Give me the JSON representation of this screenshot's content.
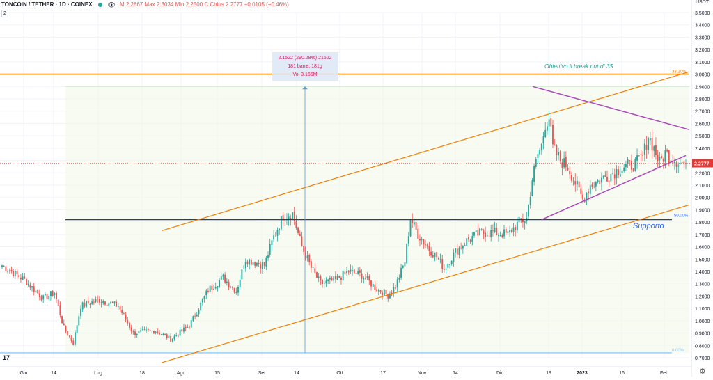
{
  "header": {
    "title": "TONCOIN / TETHER · 1D · COINEX",
    "ohlc_text": "M 2.2867  Max 2.3034  Min 2.2500  C Chius 2.2777  −0.0105 (−0.46%)",
    "badge": "2"
  },
  "currency_label": "USDT",
  "colors": {
    "up": "#26a69a",
    "down": "#ef5350",
    "channel": "#f57c00",
    "triangle": "#ab47bc",
    "support": "#1e3f8f",
    "resistance": "#f57c00",
    "last_price": "#e53935"
  },
  "chart_data": {
    "type": "candlestick",
    "ylim": [
      0.7,
      3.5
    ],
    "y_ticks": [
      "0.7000",
      "0.8000",
      "0.9000",
      "1.0000",
      "1.1000",
      "1.2000",
      "1.3000",
      "1.4000",
      "1.5000",
      "1.6000",
      "1.7000",
      "1.8000",
      "1.9000",
      "2.0000",
      "2.1000",
      "2.2000",
      "2.3000",
      "2.4000",
      "2.5000",
      "2.6000",
      "2.7000",
      "2.8000",
      "2.9000",
      "3.0000",
      "3.1000",
      "3.2000",
      "3.3000",
      "3.4000",
      "3.5000"
    ],
    "x_ticks": [
      "Giu",
      "14",
      "Lug",
      "18",
      "Ago",
      "15",
      "Set",
      "14",
      "Ott",
      "17",
      "Nov",
      "14",
      "Dic",
      "19",
      "2023",
      "16",
      "Feb"
    ],
    "last_price": 2.2777,
    "last_price_label": "2.2777",
    "anchors": [
      [
        0,
        1.45
      ],
      [
        12,
        1.33
      ],
      [
        22,
        1.18
      ],
      [
        28,
        1.23
      ],
      [
        33,
        0.94
      ],
      [
        38,
        0.82
      ],
      [
        42,
        1.12
      ],
      [
        52,
        1.17
      ],
      [
        62,
        1.12
      ],
      [
        70,
        0.9
      ],
      [
        82,
        0.92
      ],
      [
        90,
        0.85
      ],
      [
        100,
        0.96
      ],
      [
        110,
        1.25
      ],
      [
        118,
        1.35
      ],
      [
        125,
        1.24
      ],
      [
        130,
        1.5
      ],
      [
        140,
        1.45
      ],
      [
        145,
        1.68
      ],
      [
        150,
        1.85
      ],
      [
        155,
        1.87
      ],
      [
        160,
        1.6
      ],
      [
        165,
        1.43
      ],
      [
        170,
        1.3
      ],
      [
        178,
        1.33
      ],
      [
        185,
        1.4
      ],
      [
        192,
        1.37
      ],
      [
        200,
        1.26
      ],
      [
        206,
        1.21
      ],
      [
        210,
        1.28
      ],
      [
        215,
        1.48
      ],
      [
        218,
        1.83
      ],
      [
        222,
        1.7
      ],
      [
        228,
        1.58
      ],
      [
        232,
        1.52
      ],
      [
        236,
        1.42
      ],
      [
        242,
        1.56
      ],
      [
        248,
        1.65
      ],
      [
        255,
        1.71
      ],
      [
        262,
        1.72
      ],
      [
        270,
        1.7
      ],
      [
        276,
        1.8
      ],
      [
        280,
        1.83
      ],
      [
        283,
        2.15
      ],
      [
        286,
        2.35
      ],
      [
        288,
        2.42
      ],
      [
        290,
        2.6
      ],
      [
        292,
        2.65
      ],
      [
        294,
        2.4
      ],
      [
        298,
        2.3
      ],
      [
        302,
        2.25
      ],
      [
        306,
        2.12
      ],
      [
        310,
        1.98
      ],
      [
        314,
        2.1
      ],
      [
        320,
        2.15
      ],
      [
        326,
        2.2
      ],
      [
        332,
        2.25
      ],
      [
        338,
        2.27
      ],
      [
        342,
        2.33
      ],
      [
        345,
        2.5
      ],
      [
        348,
        2.4
      ],
      [
        351,
        2.28
      ],
      [
        354,
        2.36
      ],
      [
        357,
        2.33
      ],
      [
        360,
        2.3
      ],
      [
        362,
        2.2777
      ]
    ],
    "annotations": {
      "target_text": "Obiettivo il break out di 3$",
      "support_text": "Supporto",
      "fib_top": "38.20%",
      "fib_mid": "50.00%",
      "fib_bottom": "0.00%",
      "measure_lines": [
        "2.1522 (290.28%) 21522",
        "181 barre, 181g",
        "Vol 3.165M"
      ]
    }
  }
}
